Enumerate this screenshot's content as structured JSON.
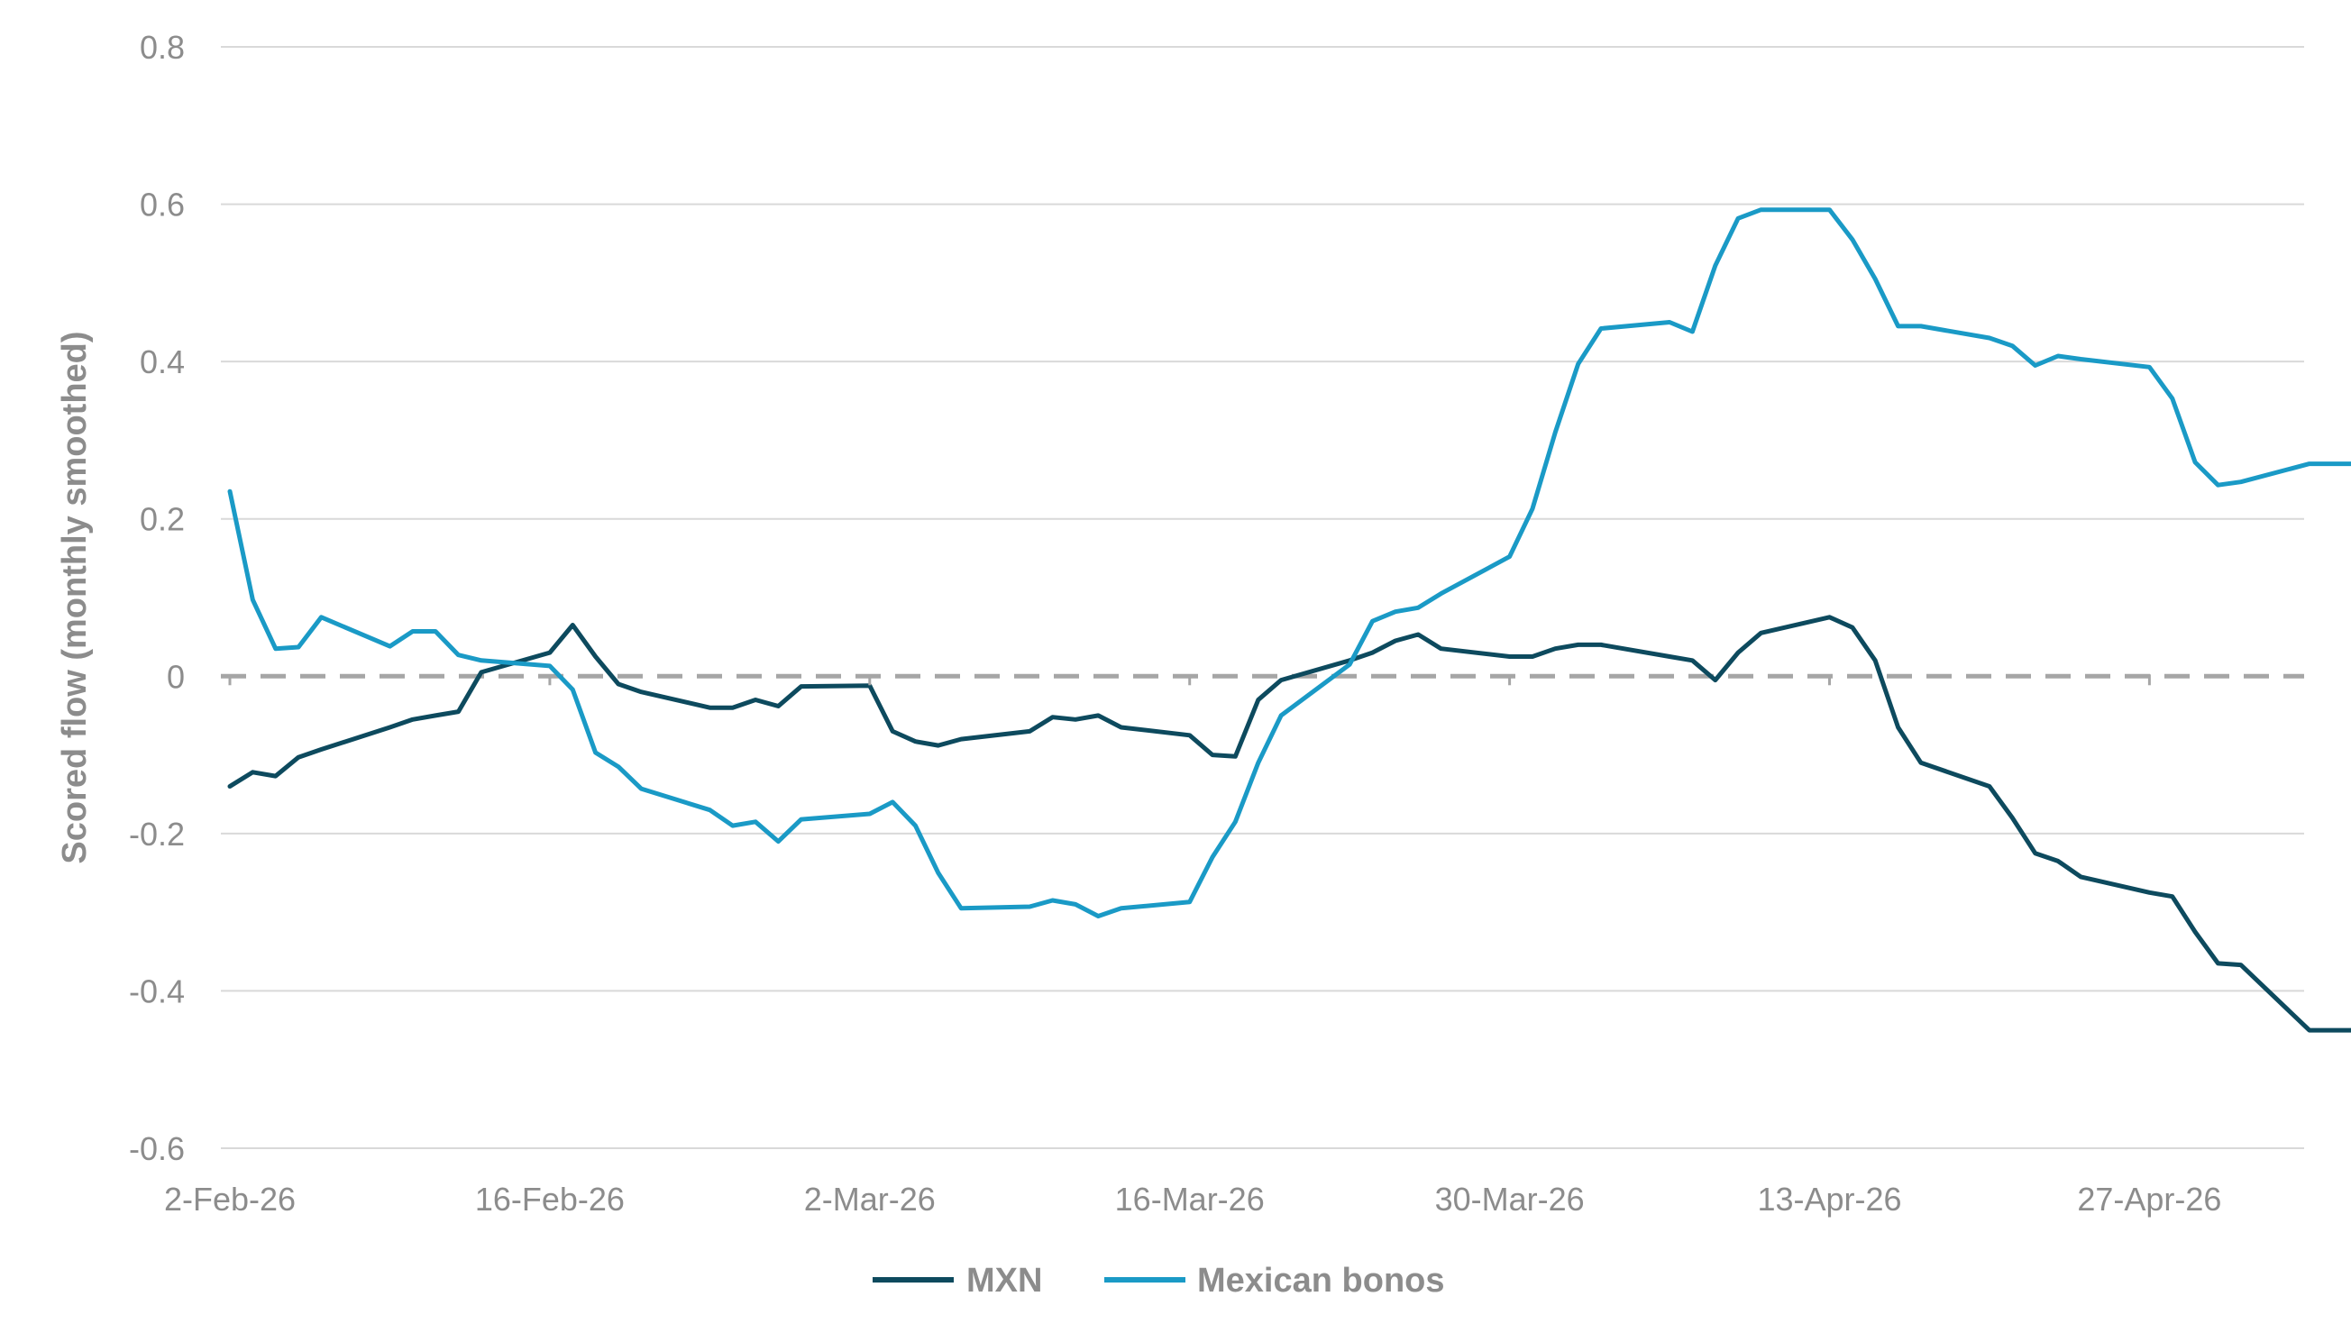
{
  "chart_data": {
    "type": "line",
    "title": "",
    "xlabel": "",
    "ylabel": "Scored flow (monthly smoothed)",
    "ylim": [
      -0.6,
      0.8
    ],
    "yticks": [
      -0.6,
      -0.4,
      -0.2,
      0,
      0.2,
      0.4,
      0.6,
      0.8
    ],
    "ytick_labels": [
      "-0.6",
      "-0.4",
      "-0.2",
      "0",
      "0.2",
      "0.4",
      "0.6",
      "0.8"
    ],
    "xlim": [
      "2026-02-02",
      "2026-05-08"
    ],
    "xticks": [
      "2026-02-02",
      "2026-02-16",
      "2026-03-02",
      "2026-03-16",
      "2026-03-30",
      "2026-04-13",
      "2026-04-27"
    ],
    "xtick_labels": [
      "2-Feb-26",
      "16-Feb-26",
      "2-Mar-26",
      "16-Mar-26",
      "30-Mar-26",
      "13-Apr-26",
      "27-Apr-26"
    ],
    "gridlines": "horizontal",
    "zero_line": "dashed",
    "legend_position": "bottom",
    "colors": {
      "MXN": "#0d4a5e",
      "Mexican bonos": "#1a9ac6",
      "grid": "#d9d9d9",
      "zero": "#a6a6a6",
      "axis_text": "#8c8c8c"
    },
    "series": [
      {
        "name": "MXN",
        "x": [
          "2026-02-02",
          "2026-02-03",
          "2026-02-04",
          "2026-02-05",
          "2026-02-06",
          "2026-02-09",
          "2026-02-10",
          "2026-02-11",
          "2026-02-12",
          "2026-02-13",
          "2026-02-16",
          "2026-02-17",
          "2026-02-18",
          "2026-02-19",
          "2026-02-20",
          "2026-02-23",
          "2026-02-24",
          "2026-02-25",
          "2026-02-26",
          "2026-02-27",
          "2026-03-02",
          "2026-03-03",
          "2026-03-04",
          "2026-03-05",
          "2026-03-06",
          "2026-03-09",
          "2026-03-10",
          "2026-03-11",
          "2026-03-12",
          "2026-03-13",
          "2026-03-16",
          "2026-03-17",
          "2026-03-18",
          "2026-03-19",
          "2026-03-20",
          "2026-03-23",
          "2026-03-24",
          "2026-03-25",
          "2026-03-26",
          "2026-03-27",
          "2026-03-30",
          "2026-03-31",
          "2026-04-01",
          "2026-04-02",
          "2026-04-03",
          "2026-04-06",
          "2026-04-07",
          "2026-04-08",
          "2026-04-09",
          "2026-04-10",
          "2026-04-13",
          "2026-04-14",
          "2026-04-15",
          "2026-04-16",
          "2026-04-17",
          "2026-04-20",
          "2026-04-21",
          "2026-04-22",
          "2026-04-23",
          "2026-04-24",
          "2026-04-27",
          "2026-04-28",
          "2026-04-29",
          "2026-04-30",
          "2026-05-01",
          "2026-05-04",
          "2026-05-05",
          "2026-05-06",
          "2026-05-07",
          "2026-05-08"
        ],
        "values": [
          -0.14,
          -0.122,
          -0.127,
          -0.103,
          -0.093,
          -0.065,
          -0.055,
          -0.05,
          -0.045,
          0.005,
          0.03,
          0.065,
          0.025,
          -0.01,
          -0.02,
          -0.04,
          -0.04,
          -0.03,
          -0.038,
          -0.013,
          -0.012,
          -0.07,
          -0.083,
          -0.088,
          -0.08,
          -0.07,
          -0.052,
          -0.055,
          -0.05,
          -0.065,
          -0.075,
          -0.1,
          -0.102,
          -0.03,
          -0.005,
          0.02,
          0.03,
          0.045,
          0.053,
          0.035,
          0.025,
          0.025,
          0.035,
          0.04,
          0.04,
          0.025,
          0.02,
          -0.005,
          0.03,
          0.055,
          0.075,
          0.062,
          0.02,
          -0.065,
          -0.11,
          -0.14,
          -0.18,
          -0.225,
          -0.235,
          -0.255,
          -0.275,
          -0.28,
          -0.325,
          -0.365,
          -0.367,
          -0.45,
          -0.45,
          -0.45,
          -0.45,
          -0.45
        ]
      },
      {
        "name": "Mexican bonos",
        "x": [
          "2026-02-02",
          "2026-02-03",
          "2026-02-04",
          "2026-02-05",
          "2026-02-06",
          "2026-02-09",
          "2026-02-10",
          "2026-02-11",
          "2026-02-12",
          "2026-02-13",
          "2026-02-16",
          "2026-02-17",
          "2026-02-18",
          "2026-02-19",
          "2026-02-20",
          "2026-02-23",
          "2026-02-24",
          "2026-02-25",
          "2026-02-26",
          "2026-02-27",
          "2026-03-02",
          "2026-03-03",
          "2026-03-04",
          "2026-03-05",
          "2026-03-06",
          "2026-03-09",
          "2026-03-10",
          "2026-03-11",
          "2026-03-12",
          "2026-03-13",
          "2026-03-16",
          "2026-03-17",
          "2026-03-18",
          "2026-03-19",
          "2026-03-20",
          "2026-03-23",
          "2026-03-24",
          "2026-03-25",
          "2026-03-26",
          "2026-03-27",
          "2026-03-30",
          "2026-03-31",
          "2026-04-01",
          "2026-04-02",
          "2026-04-03",
          "2026-04-06",
          "2026-04-07",
          "2026-04-08",
          "2026-04-09",
          "2026-04-10",
          "2026-04-13",
          "2026-04-14",
          "2026-04-15",
          "2026-04-16",
          "2026-04-17",
          "2026-04-20",
          "2026-04-21",
          "2026-04-22",
          "2026-04-23",
          "2026-04-24",
          "2026-04-27",
          "2026-04-28",
          "2026-04-29",
          "2026-04-30",
          "2026-05-01",
          "2026-05-04",
          "2026-05-05",
          "2026-05-06",
          "2026-05-07",
          "2026-05-08"
        ],
        "values": [
          0.235,
          0.097,
          0.035,
          0.037,
          0.075,
          0.038,
          0.057,
          0.057,
          0.027,
          0.02,
          0.013,
          -0.017,
          -0.097,
          -0.115,
          -0.143,
          -0.17,
          -0.19,
          -0.185,
          -0.21,
          -0.182,
          -0.175,
          -0.16,
          -0.19,
          -0.25,
          -0.295,
          -0.293,
          -0.285,
          -0.29,
          -0.305,
          -0.295,
          -0.287,
          -0.23,
          -0.185,
          -0.11,
          -0.05,
          0.015,
          0.07,
          0.082,
          0.087,
          0.105,
          0.152,
          0.213,
          0.31,
          0.397,
          0.442,
          0.45,
          0.438,
          0.522,
          0.582,
          0.593,
          0.593,
          0.555,
          0.505,
          0.445,
          0.445,
          0.43,
          0.42,
          0.395,
          0.407,
          0.403,
          0.393,
          0.353,
          0.272,
          0.243,
          0.247,
          0.27,
          0.27,
          0.27,
          0.27,
          0.27
        ]
      }
    ]
  }
}
